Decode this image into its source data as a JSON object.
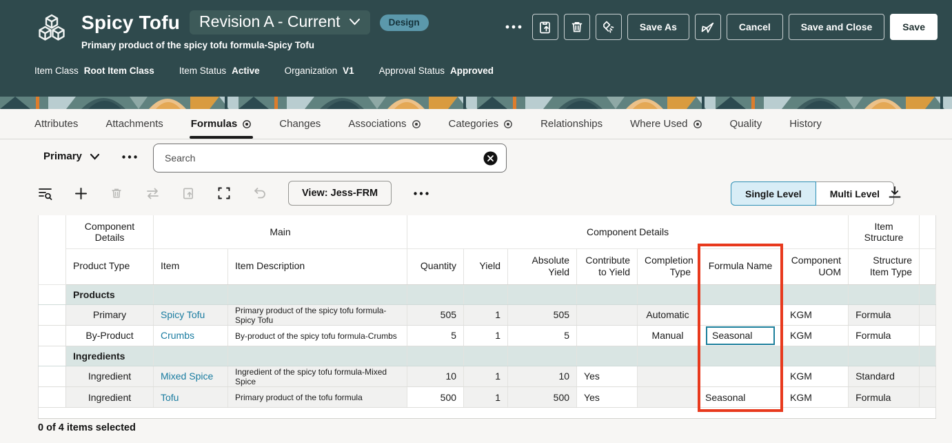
{
  "header": {
    "title": "Spicy Tofu",
    "revision_selector": "Revision A - Current",
    "lifecycle_badge": "Design",
    "subtitle": "Primary product of the spicy tofu formula-Spicy Tofu",
    "meta": [
      {
        "label": "Item Class",
        "value": "Root Item Class"
      },
      {
        "label": "Item Status",
        "value": "Active"
      },
      {
        "label": "Organization",
        "value": "V1"
      },
      {
        "label": "Approval Status",
        "value": "Approved"
      }
    ],
    "buttons": {
      "save_as": "Save As",
      "cancel": "Cancel",
      "save_and_close": "Save and Close",
      "save": "Save"
    }
  },
  "tabs": [
    {
      "label": "Attributes"
    },
    {
      "label": "Attachments"
    },
    {
      "label": "Formulas",
      "indicator": true,
      "active": true
    },
    {
      "label": "Changes"
    },
    {
      "label": "Associations",
      "indicator": true
    },
    {
      "label": "Categories",
      "indicator": true
    },
    {
      "label": "Relationships"
    },
    {
      "label": "Where Used",
      "indicator": true
    },
    {
      "label": "Quality"
    },
    {
      "label": "History"
    }
  ],
  "filter_bar": {
    "scope": "Primary",
    "search_placeholder": "Search"
  },
  "table_toolbar": {
    "view_label": "View: Jess-FRM",
    "single_level": "Single Level",
    "multi_level": "Multi Level"
  },
  "table": {
    "group_headers": {
      "component_details_left": "Component Details",
      "main": "Main",
      "component_details": "Component Details",
      "item_structure": "Item Structure"
    },
    "columns": {
      "product_type": "Product Type",
      "item": "Item",
      "item_description": "Item Description",
      "quantity": "Quantity",
      "yield": "Yield",
      "absolute_yield": "Absolute Yield",
      "contribute_to_yield": "Contribute to Yield",
      "completion_type": "Completion Type",
      "formula_name": "Formula Name",
      "component_uom": "Component UOM",
      "structure_item_type": "Structure Item Type"
    },
    "rows": [
      {
        "type": "group",
        "label": "Products"
      },
      {
        "type": "data",
        "product_type": "Primary",
        "item": "Spicy Tofu",
        "item_description": "Primary product of the spicy tofu formula-Spicy Tofu",
        "quantity": "505",
        "yield": "1",
        "absolute_yield": "505",
        "contribute_to_yield": "",
        "completion_type": "Automatic",
        "formula_name": "",
        "component_uom": "KGM",
        "structure_item_type": "Formula"
      },
      {
        "type": "data",
        "active": true,
        "product_type": "By-Product",
        "item": "Crumbs",
        "item_description": "By-product of the spicy tofu formula-Crumbs",
        "quantity": "5",
        "yield": "1",
        "absolute_yield": "5",
        "contribute_to_yield": "",
        "completion_type": "Manual",
        "formula_name": "Seasonal",
        "formula_focused": true,
        "component_uom": "KGM",
        "structure_item_type": "Formula"
      },
      {
        "type": "group",
        "label": "Ingredients"
      },
      {
        "type": "data",
        "product_type": "Ingredient",
        "item": "Mixed Spice",
        "item_description": "Ingredient of the spicy tofu formula-Mixed Spice",
        "quantity": "10",
        "yield": "1",
        "absolute_yield": "10",
        "contribute_to_yield": "Yes",
        "completion_type": "",
        "formula_name": "",
        "component_uom": "KGM",
        "structure_item_type": "Standard"
      },
      {
        "type": "data",
        "product_type": "Ingredient",
        "item": "Tofu",
        "item_description": "Primary product of the tofu formula",
        "quantity": "500",
        "yield": "1",
        "absolute_yield": "500",
        "contribute_to_yield": "Yes",
        "completion_type": "",
        "formula_name": "Seasonal",
        "edited": [
          "quantity"
        ],
        "component_uom": "KGM",
        "structure_item_type": "Formula"
      }
    ]
  },
  "footer": {
    "selection_summary": "0 of 4 items selected"
  },
  "colors": {
    "header_bg": "#2f4a4d",
    "badge_bg": "#5b98ab",
    "accent_red": "#e8391d",
    "link": "#187ba0",
    "group_row": "#d9e5e3",
    "toggle_bg": "#d8edf6",
    "focus": "#1b7f9b"
  }
}
